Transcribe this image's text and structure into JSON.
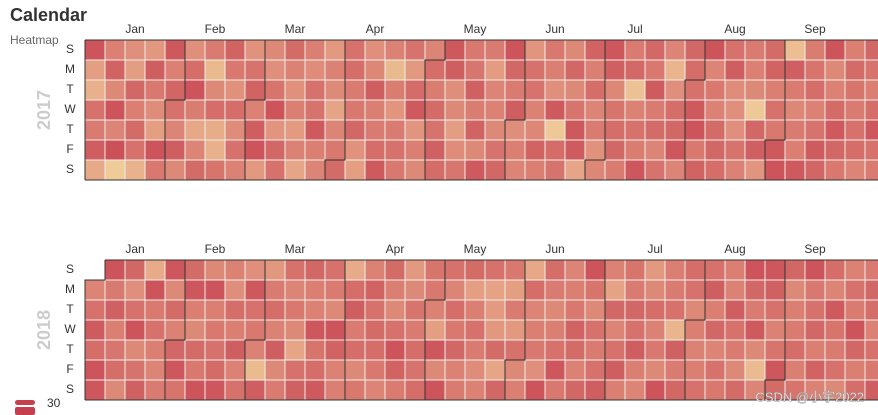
{
  "chart_data": {
    "type": "calendar",
    "title": "Calendar",
    "subtitle": "Heatmap",
    "day_labels": [
      "S",
      "M",
      "T",
      "W",
      "T",
      "F",
      "S"
    ],
    "months": [
      "Jan",
      "Feb",
      "Mar",
      "Apr",
      "May",
      "Jun",
      "Jul",
      "Aug",
      "Sep"
    ],
    "vlim": [
      30,
      1000
    ],
    "vmin_label": "30",
    "colors": [
      "#f3dc9f",
      "#e0907c",
      "#c5404f"
    ],
    "watermark": "CSDN @小宇2022",
    "calendars": [
      {
        "year": "2017",
        "values": [
          880,
          420,
          310,
          700,
          640,
          820,
          350,
          610,
          790,
          560,
          880,
          590,
          900,
          140,
          520,
          430,
          760,
          620,
          740,
          700,
          300,
          470,
          820,
          660,
          540,
          420,
          880,
          660,
          850,
          610,
          770,
          700,
          590,
          820,
          560,
          520,
          720,
          880,
          630,
          360,
          590,
          740,
          640,
          250,
          560,
          720,
          330,
          310,
          680,
          780,
          660,
          510,
          720,
          540,
          700,
          600,
          500,
          690,
          780,
          600,
          820,
          880,
          460,
          560,
          520,
          680,
          880,
          490,
          760,
          700,
          740,
          600,
          510,
          620,
          450,
          600,
          380,
          620,
          540,
          700,
          690,
          840,
          620,
          590,
          460,
          600,
          550,
          390,
          580,
          660,
          740,
          700,
          720,
          640,
          660,
          760,
          500,
          420,
          520,
          570,
          820,
          620,
          640,
          720,
          840,
          600,
          250,
          630,
          480,
          640,
          700,
          660,
          690,
          460,
          730,
          840,
          480,
          620,
          560,
          590,
          720,
          630,
          740,
          690,
          800,
          730,
          850,
          820,
          530,
          560,
          430,
          540,
          670,
          660,
          670,
          800,
          630,
          780,
          560,
          840,
          640,
          440,
          580,
          600,
          560,
          690,
          760,
          880,
          760,
          640,
          820,
          530,
          620,
          580,
          480,
          700,
          690,
          600,
          570,
          780,
          620,
          660,
          620,
          520,
          840,
          160,
          730,
          690,
          560,
          760,
          560,
          680,
          850,
          830,
          380,
          780,
          620,
          720,
          580,
          640,
          500,
          570,
          860,
          810,
          570,
          680,
          720,
          760,
          640,
          640,
          750,
          200,
          600,
          700,
          630,
          860,
          750,
          660,
          830,
          640,
          740,
          580,
          690,
          580,
          280,
          520,
          720,
          760,
          860,
          580,
          760,
          720,
          700,
          840,
          880,
          660,
          780,
          880,
          580,
          660,
          600,
          740,
          760,
          720,
          700,
          820,
          540,
          520,
          520,
          690,
          600,
          640,
          610,
          560,
          160,
          760,
          810,
          480,
          740,
          780,
          620,
          700,
          660,
          850,
          880,
          220,
          810,
          640,
          570,
          640,
          620,
          840,
          630,
          680,
          720,
          600,
          690,
          830,
          770,
          880,
          560,
          600,
          740,
          840,
          760,
          660,
          620,
          740,
          680,
          640,
          700,
          720,
          580,
          760,
          690,
          620,
          720,
          860,
          700,
          640
        ]
      },
      {
        "year": "2018",
        "values": [
          580,
          700,
          830,
          720,
          880,
          860,
          880,
          650,
          800,
          620,
          670,
          720,
          560,
          760,
          520,
          700,
          880,
          560,
          690,
          800,
          340,
          880,
          650,
          700,
          620,
          580,
          640,
          860,
          560,
          740,
          600,
          760,
          860,
          680,
          740,
          860,
          620,
          560,
          740,
          660,
          880,
          560,
          880,
          620,
          660,
          700,
          740,
          860,
          600,
          530,
          720,
          620,
          820,
          600,
          700,
          520,
          850,
          700,
          660,
          600,
          240,
          820,
          470,
          640,
          720,
          600,
          820,
          560,
          640,
          700,
          580,
          660,
          560,
          380,
          700,
          800,
          760,
          620,
          600,
          860,
          680,
          720,
          840,
          700,
          640,
          560,
          880,
          780,
          600,
          620,
          340,
          720,
          820,
          640,
          720,
          560,
          660,
          600,
          780,
          700,
          740,
          720,
          660,
          580,
          740,
          620,
          560,
          700,
          880,
          780,
          640,
          460,
          560,
          680,
          640,
          720,
          690,
          720,
          680,
          660,
          600,
          420,
          860,
          560,
          880,
          700,
          580,
          720,
          660,
          760,
          600,
          640,
          740,
          420,
          620,
          700,
          640,
          540,
          600,
          700,
          400,
          450,
          470,
          740,
          380,
          760,
          660,
          420,
          640,
          460,
          700,
          560,
          620,
          360,
          720,
          580,
          620,
          660,
          520,
          880,
          720,
          640,
          560,
          620,
          700,
          860,
          660,
          580,
          620,
          660,
          780,
          740,
          600,
          760,
          880,
          680,
          560,
          700,
          640,
          700,
          820,
          600,
          400,
          760,
          580,
          700,
          820,
          620,
          680,
          640,
          760,
          700,
          820,
          620,
          580,
          460,
          560,
          720,
          600,
          660,
          560,
          880,
          620,
          640,
          700,
          280,
          800,
          640,
          760,
          720,
          700,
          560,
          620,
          600,
          620,
          700,
          700,
          820,
          620,
          760,
          580,
          700,
          660,
          620,
          600,
          820,
          700,
          640,
          560,
          740,
          880,
          760,
          640,
          840,
          560,
          240,
          580,
          860,
          800,
          700,
          600,
          680,
          860,
          740,
          760,
          560,
          620,
          640,
          720,
          620,
          680,
          880,
          660,
          700,
          760,
          620,
          780,
          600,
          720,
          580,
          840,
          680,
          640,
          700,
          560,
          600,
          700,
          640,
          880,
          760,
          620,
          720,
          640,
          760,
          720,
          600,
          700,
          660,
          820
        ]
      }
    ]
  }
}
